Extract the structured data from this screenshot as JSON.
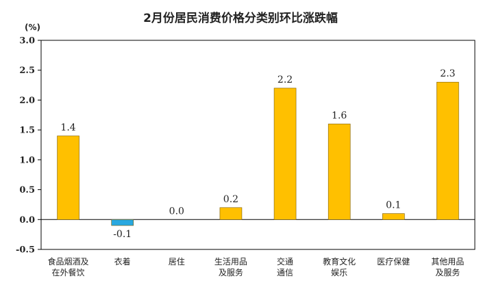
{
  "chart_data": {
    "type": "bar",
    "title": "2月份居民消费价格分类别环比涨跌幅",
    "unit": "(%)",
    "categories": [
      [
        "食品烟酒及",
        "在外餐饮"
      ],
      [
        "衣着"
      ],
      [
        "居住"
      ],
      [
        "生活用品",
        "及服务"
      ],
      [
        "交通",
        "通信"
      ],
      [
        "教育文化",
        "娱乐"
      ],
      [
        "医疗保健"
      ],
      [
        "其他用品",
        "及服务"
      ]
    ],
    "values": [
      1.4,
      -0.1,
      0.0,
      0.2,
      2.2,
      1.6,
      0.1,
      2.3
    ],
    "value_labels": [
      "1.4",
      "-0.1",
      "0.0",
      "0.2",
      "2.2",
      "1.6",
      "0.1",
      "2.3"
    ],
    "ylim": [
      -0.5,
      3.0
    ],
    "yticks": [
      "-0.5",
      "0.0",
      "0.5",
      "1.0",
      "1.5",
      "2.0",
      "2.5",
      "3.0"
    ],
    "colors": {
      "positive": "#FFC000",
      "negative": "#29A8E0",
      "bar_edge": "#7a5a00",
      "axis": "#000000"
    },
    "grid": false
  }
}
